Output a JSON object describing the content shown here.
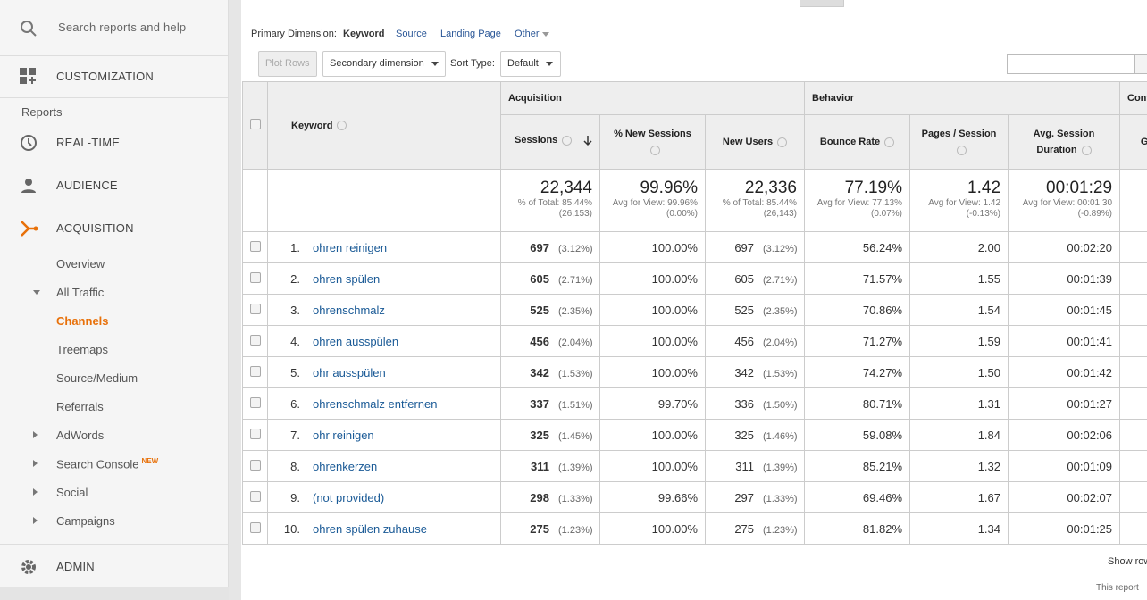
{
  "sidebar": {
    "search_placeholder": "Search reports and help",
    "customization": "CUSTOMIZATION",
    "reports_heading": "Reports",
    "nav": [
      "REAL-TIME",
      "AUDIENCE",
      "ACQUISITION"
    ],
    "acquisition_items": [
      "Overview",
      "All Traffic",
      "Channels",
      "Treemaps",
      "Source/Medium",
      "Referrals",
      "AdWords",
      "Search Console",
      "Social",
      "Campaigns"
    ],
    "new_badge": "NEW",
    "admin": "ADMIN"
  },
  "dimension_bar": {
    "label": "Primary Dimension:",
    "options": [
      "Keyword",
      "Source",
      "Landing Page",
      "Other"
    ]
  },
  "toolbar": {
    "plot_rows": "Plot Rows",
    "secondary_dimension": "Secondary dimension",
    "sort_type_label": "Sort Type:",
    "sort_type": "Default"
  },
  "table": {
    "groups": [
      "Acquisition",
      "Behavior",
      "Conv"
    ],
    "columns": [
      "Keyword",
      "Sessions",
      "% New Sessions",
      "New Users",
      "Bounce Rate",
      "Pages / Session",
      "Avg. Session Duration",
      "Goa"
    ],
    "totals": [
      {
        "value": "22,344",
        "note": "% of Total: 85.44% (26,153)"
      },
      {
        "value": "99.96%",
        "note": "Avg for View: 99.96% (0.00%)"
      },
      {
        "value": "22,336",
        "note": "% of Total: 85.44% (26,143)"
      },
      {
        "value": "77.19%",
        "note": "Avg for View: 77.13% (0.07%)"
      },
      {
        "value": "1.42",
        "note": "Avg for View: 1.42 (-0.13%)"
      },
      {
        "value": "00:01:29",
        "note": "Avg for View: 00:01:30 (-0.89%)"
      }
    ],
    "rows": [
      [
        "1.",
        "ohren reinigen",
        "697",
        "(3.12%)",
        "100.00%",
        "697",
        "(3.12%)",
        "56.24%",
        "2.00",
        "00:02:20"
      ],
      [
        "2.",
        "ohren spülen",
        "605",
        "(2.71%)",
        "100.00%",
        "605",
        "(2.71%)",
        "71.57%",
        "1.55",
        "00:01:39"
      ],
      [
        "3.",
        "ohrenschmalz",
        "525",
        "(2.35%)",
        "100.00%",
        "525",
        "(2.35%)",
        "70.86%",
        "1.54",
        "00:01:45"
      ],
      [
        "4.",
        "ohren ausspülen",
        "456",
        "(2.04%)",
        "100.00%",
        "456",
        "(2.04%)",
        "71.27%",
        "1.59",
        "00:01:41"
      ],
      [
        "5.",
        "ohr ausspülen",
        "342",
        "(1.53%)",
        "100.00%",
        "342",
        "(1.53%)",
        "74.27%",
        "1.50",
        "00:01:42"
      ],
      [
        "6.",
        "ohrenschmalz entfernen",
        "337",
        "(1.51%)",
        "99.70%",
        "336",
        "(1.50%)",
        "80.71%",
        "1.31",
        "00:01:27"
      ],
      [
        "7.",
        "ohr reinigen",
        "325",
        "(1.45%)",
        "100.00%",
        "325",
        "(1.46%)",
        "59.08%",
        "1.84",
        "00:02:06"
      ],
      [
        "8.",
        "ohrenkerzen",
        "311",
        "(1.39%)",
        "100.00%",
        "311",
        "(1.39%)",
        "85.21%",
        "1.32",
        "00:01:09"
      ],
      [
        "9.",
        "(not provided)",
        "298",
        "(1.33%)",
        "99.66%",
        "297",
        "(1.33%)",
        "69.46%",
        "1.67",
        "00:02:07"
      ],
      [
        "10.",
        "ohren spülen zuhause",
        "275",
        "(1.23%)",
        "100.00%",
        "275",
        "(1.23%)",
        "81.82%",
        "1.34",
        "00:01:25"
      ]
    ]
  },
  "footer": {
    "show_rows": "Show row",
    "report_note": "This report"
  }
}
